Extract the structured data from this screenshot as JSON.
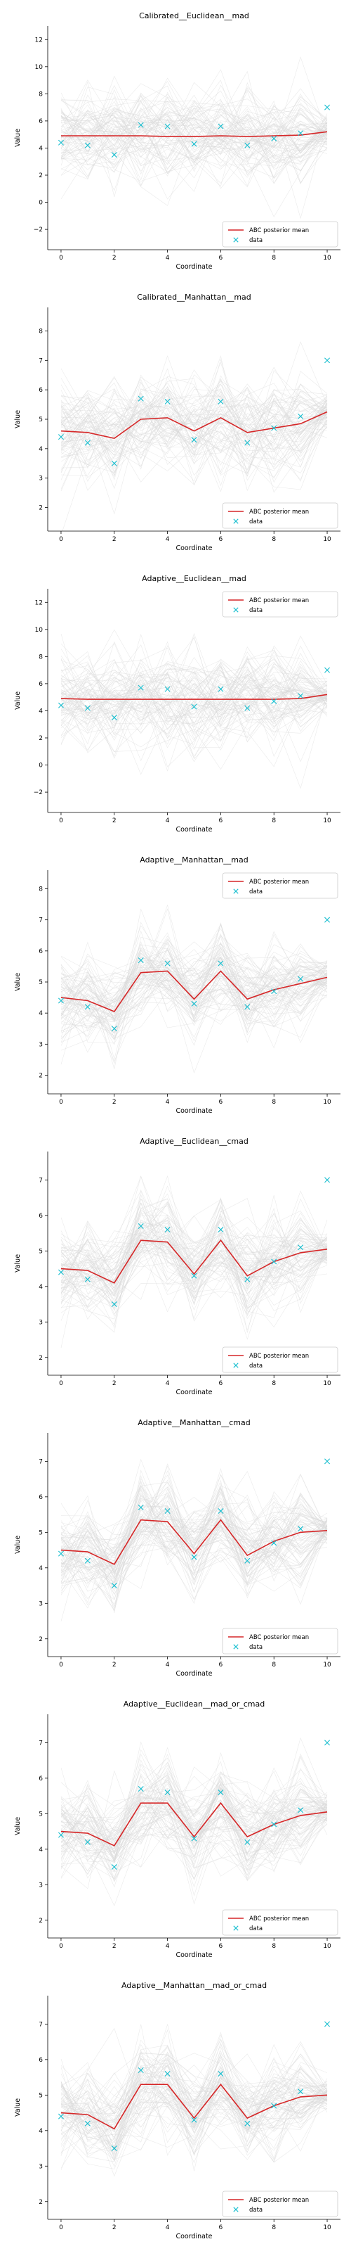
{
  "colors": {
    "mean_line": "#d62728",
    "data_marker": "#17becf",
    "background_traces": "#d9d9d9",
    "axis": "#000000"
  },
  "chart_data": [
    {
      "type": "line",
      "title": "Calibrated__Euclidean__mad",
      "xlabel": "Coordinate",
      "ylabel": "Value",
      "xlim": [
        -0.5,
        10.5
      ],
      "ylim": [
        -3.5,
        13
      ],
      "xticks": [
        0,
        2,
        4,
        6,
        8,
        10
      ],
      "yticks": [
        -2,
        0,
        2,
        4,
        6,
        8,
        10,
        12
      ],
      "legend_position": "lower-right",
      "grid": false,
      "x": [
        0,
        1,
        2,
        3,
        4,
        5,
        6,
        7,
        8,
        9,
        10
      ],
      "series": [
        {
          "name": "ABC posterior mean",
          "style": "line",
          "values": [
            4.9,
            4.9,
            4.9,
            4.9,
            4.85,
            4.85,
            4.9,
            4.85,
            4.9,
            4.95,
            5.2
          ]
        },
        {
          "name": "data",
          "style": "marker-x",
          "values": [
            4.4,
            4.2,
            3.5,
            5.7,
            5.6,
            4.3,
            5.6,
            4.2,
            4.7,
            5.1,
            7.0
          ]
        }
      ],
      "background_traces": {
        "count": 80,
        "spread": 3.2
      }
    },
    {
      "type": "line",
      "title": "Calibrated__Manhattan__mad",
      "xlabel": "Coordinate",
      "ylabel": "Value",
      "xlim": [
        -0.5,
        10.5
      ],
      "ylim": [
        1.2,
        8.8
      ],
      "xticks": [
        0,
        2,
        4,
        6,
        8,
        10
      ],
      "yticks": [
        2,
        3,
        4,
        5,
        6,
        7,
        8
      ],
      "legend_position": "lower-right",
      "grid": false,
      "x": [
        0,
        1,
        2,
        3,
        4,
        5,
        6,
        7,
        8,
        9,
        10
      ],
      "series": [
        {
          "name": "ABC posterior mean",
          "style": "line",
          "values": [
            4.6,
            4.55,
            4.35,
            5.0,
            5.05,
            4.6,
            5.05,
            4.55,
            4.7,
            4.85,
            5.25
          ]
        },
        {
          "name": "data",
          "style": "marker-x",
          "values": [
            4.4,
            4.2,
            3.5,
            5.7,
            5.6,
            4.3,
            5.6,
            4.2,
            4.7,
            5.1,
            7.0
          ]
        }
      ],
      "background_traces": {
        "count": 80,
        "spread": 1.6
      }
    },
    {
      "type": "line",
      "title": "Adaptive__Euclidean__mad",
      "xlabel": "Coordinate",
      "ylabel": "Value",
      "xlim": [
        -0.5,
        10.5
      ],
      "ylim": [
        -3.5,
        13
      ],
      "xticks": [
        0,
        2,
        4,
        6,
        8,
        10
      ],
      "yticks": [
        -2,
        0,
        2,
        4,
        6,
        8,
        10,
        12
      ],
      "legend_position": "upper-right",
      "grid": false,
      "x": [
        0,
        1,
        2,
        3,
        4,
        5,
        6,
        7,
        8,
        9,
        10
      ],
      "series": [
        {
          "name": "ABC posterior mean",
          "style": "line",
          "values": [
            4.9,
            4.85,
            4.85,
            4.85,
            4.85,
            4.85,
            4.85,
            4.85,
            4.85,
            4.9,
            5.2
          ]
        },
        {
          "name": "data",
          "style": "marker-x",
          "values": [
            4.4,
            4.2,
            3.5,
            5.7,
            5.6,
            4.3,
            5.6,
            4.2,
            4.7,
            5.1,
            7.0
          ]
        }
      ],
      "background_traces": {
        "count": 80,
        "spread": 3.2
      }
    },
    {
      "type": "line",
      "title": "Adaptive__Manhattan__mad",
      "xlabel": "Coordinate",
      "ylabel": "Value",
      "xlim": [
        -0.5,
        10.5
      ],
      "ylim": [
        1.4,
        8.6
      ],
      "xticks": [
        0,
        2,
        4,
        6,
        8,
        10
      ],
      "yticks": [
        2,
        3,
        4,
        5,
        6,
        7,
        8
      ],
      "legend_position": "upper-right",
      "grid": false,
      "x": [
        0,
        1,
        2,
        3,
        4,
        5,
        6,
        7,
        8,
        9,
        10
      ],
      "series": [
        {
          "name": "ABC posterior mean",
          "style": "line",
          "values": [
            4.5,
            4.4,
            4.05,
            5.3,
            5.35,
            4.45,
            5.35,
            4.45,
            4.75,
            4.95,
            5.15
          ]
        },
        {
          "name": "data",
          "style": "marker-x",
          "values": [
            4.4,
            4.2,
            3.5,
            5.7,
            5.6,
            4.3,
            5.6,
            4.2,
            4.7,
            5.1,
            7.0
          ]
        }
      ],
      "background_traces": {
        "count": 80,
        "spread": 1.3
      }
    },
    {
      "type": "line",
      "title": "Adaptive__Euclidean__cmad",
      "xlabel": "Coordinate",
      "ylabel": "Value",
      "xlim": [
        -0.5,
        10.5
      ],
      "ylim": [
        1.5,
        7.8
      ],
      "xticks": [
        0,
        2,
        4,
        6,
        8,
        10
      ],
      "yticks": [
        2,
        3,
        4,
        5,
        6,
        7
      ],
      "legend_position": "lower-right",
      "grid": false,
      "x": [
        0,
        1,
        2,
        3,
        4,
        5,
        6,
        7,
        8,
        9,
        10
      ],
      "series": [
        {
          "name": "ABC posterior mean",
          "style": "line",
          "values": [
            4.5,
            4.45,
            4.1,
            5.3,
            5.25,
            4.35,
            5.3,
            4.3,
            4.7,
            4.95,
            5.05
          ]
        },
        {
          "name": "data",
          "style": "marker-x",
          "values": [
            4.4,
            4.2,
            3.5,
            5.7,
            5.6,
            4.3,
            5.6,
            4.2,
            4.7,
            5.1,
            7.0
          ]
        }
      ],
      "background_traces": {
        "count": 80,
        "spread": 1.2
      }
    },
    {
      "type": "line",
      "title": "Adaptive__Manhattan__cmad",
      "xlabel": "Coordinate",
      "ylabel": "Value",
      "xlim": [
        -0.5,
        10.5
      ],
      "ylim": [
        1.5,
        7.8
      ],
      "xticks": [
        0,
        2,
        4,
        6,
        8,
        10
      ],
      "yticks": [
        2,
        3,
        4,
        5,
        6,
        7
      ],
      "legend_position": "lower-right",
      "grid": false,
      "x": [
        0,
        1,
        2,
        3,
        4,
        5,
        6,
        7,
        8,
        9,
        10
      ],
      "series": [
        {
          "name": "ABC posterior mean",
          "style": "line",
          "values": [
            4.5,
            4.45,
            4.1,
            5.35,
            5.3,
            4.4,
            5.35,
            4.35,
            4.75,
            5.0,
            5.05
          ]
        },
        {
          "name": "data",
          "style": "marker-x",
          "values": [
            4.4,
            4.2,
            3.5,
            5.7,
            5.6,
            4.3,
            5.6,
            4.2,
            4.7,
            5.1,
            7.0
          ]
        }
      ],
      "background_traces": {
        "count": 80,
        "spread": 1.2
      }
    },
    {
      "type": "line",
      "title": "Adaptive__Euclidean__mad_or_cmad",
      "xlabel": "Coordinate",
      "ylabel": "Value",
      "xlim": [
        -0.5,
        10.5
      ],
      "ylim": [
        1.5,
        7.8
      ],
      "xticks": [
        0,
        2,
        4,
        6,
        8,
        10
      ],
      "yticks": [
        2,
        3,
        4,
        5,
        6,
        7
      ],
      "legend_position": "lower-right",
      "grid": false,
      "x": [
        0,
        1,
        2,
        3,
        4,
        5,
        6,
        7,
        8,
        9,
        10
      ],
      "series": [
        {
          "name": "ABC posterior mean",
          "style": "line",
          "values": [
            4.5,
            4.45,
            4.1,
            5.3,
            5.3,
            4.35,
            5.3,
            4.35,
            4.7,
            4.95,
            5.05
          ]
        },
        {
          "name": "data",
          "style": "marker-x",
          "values": [
            4.4,
            4.2,
            3.5,
            5.7,
            5.6,
            4.3,
            5.6,
            4.2,
            4.7,
            5.1,
            7.0
          ]
        }
      ],
      "background_traces": {
        "count": 80,
        "spread": 1.2
      }
    },
    {
      "type": "line",
      "title": "Adaptive__Manhattan__mad_or_cmad",
      "xlabel": "Coordinate",
      "ylabel": "Value",
      "xlim": [
        -0.5,
        10.5
      ],
      "ylim": [
        1.5,
        7.8
      ],
      "xticks": [
        0,
        2,
        4,
        6,
        8,
        10
      ],
      "yticks": [
        2,
        3,
        4,
        5,
        6,
        7
      ],
      "legend_position": "lower-right",
      "grid": false,
      "x": [
        0,
        1,
        2,
        3,
        4,
        5,
        6,
        7,
        8,
        9,
        10
      ],
      "series": [
        {
          "name": "ABC posterior mean",
          "style": "line",
          "values": [
            4.5,
            4.45,
            4.05,
            5.3,
            5.3,
            4.35,
            5.3,
            4.35,
            4.7,
            4.95,
            5.0
          ]
        },
        {
          "name": "data",
          "style": "marker-x",
          "values": [
            4.4,
            4.2,
            3.5,
            5.7,
            5.6,
            4.3,
            5.6,
            4.2,
            4.7,
            5.1,
            7.0
          ]
        }
      ],
      "background_traces": {
        "count": 80,
        "spread": 1.2
      }
    }
  ]
}
